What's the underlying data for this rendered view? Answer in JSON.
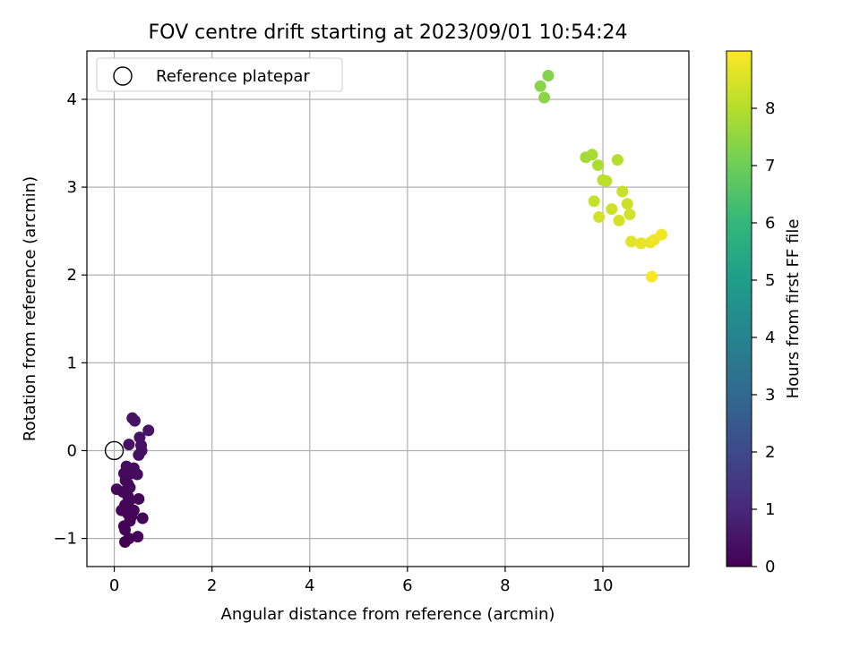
{
  "chart_data": {
    "type": "scatter",
    "title": "FOV centre drift starting at 2023/09/01 10:54:24",
    "xlabel": "Angular distance from reference (arcmin)",
    "ylabel": "Rotation from reference (arcmin)",
    "xlim": [
      -0.56,
      11.76
    ],
    "ylim": [
      -1.32,
      4.55
    ],
    "xticks": [
      0,
      2,
      4,
      6,
      8,
      10
    ],
    "yticks": [
      -1,
      0,
      1,
      2,
      3,
      4
    ],
    "grid": true,
    "legend": {
      "position": "top-left",
      "entries": [
        "Reference platepar"
      ]
    },
    "colorbar": {
      "label": "Hours from first FF file",
      "min": 0,
      "max": 9.0,
      "ticks": [
        0,
        1,
        2,
        3,
        4,
        5,
        6,
        7,
        8
      ],
      "colormap": "viridis"
    },
    "reference_point": {
      "x": 0,
      "y": 0
    },
    "points": [
      {
        "x": 0.37,
        "y": 0.37,
        "c": 0.45
      },
      {
        "x": 0.42,
        "y": 0.34,
        "c": 0.45
      },
      {
        "x": 0.7,
        "y": 0.23,
        "c": 0.5
      },
      {
        "x": 0.52,
        "y": 0.15,
        "c": 0.45
      },
      {
        "x": 0.3,
        "y": 0.07,
        "c": 0.4
      },
      {
        "x": 0.55,
        "y": 0.06,
        "c": 0.4
      },
      {
        "x": 0.56,
        "y": 0.0,
        "c": 0.4
      },
      {
        "x": 0.5,
        "y": -0.05,
        "c": 0.35
      },
      {
        "x": 0.25,
        "y": -0.18,
        "c": 0.3
      },
      {
        "x": 0.4,
        "y": -0.2,
        "c": 0.3
      },
      {
        "x": 0.2,
        "y": -0.26,
        "c": 0.25
      },
      {
        "x": 0.35,
        "y": -0.26,
        "c": 0.25
      },
      {
        "x": 0.47,
        "y": -0.27,
        "c": 0.25
      },
      {
        "x": 0.23,
        "y": -0.34,
        "c": 0.2
      },
      {
        "x": 0.28,
        "y": -0.38,
        "c": 0.2
      },
      {
        "x": 0.32,
        "y": -0.42,
        "c": 0.2
      },
      {
        "x": 0.05,
        "y": -0.44,
        "c": 0.2
      },
      {
        "x": 0.18,
        "y": -0.47,
        "c": 0.15
      },
      {
        "x": 0.28,
        "y": -0.52,
        "c": 0.15
      },
      {
        "x": 0.5,
        "y": -0.55,
        "c": 0.15
      },
      {
        "x": 0.3,
        "y": -0.58,
        "c": 0.15
      },
      {
        "x": 0.22,
        "y": -0.62,
        "c": 0.1
      },
      {
        "x": 0.15,
        "y": -0.68,
        "c": 0.1
      },
      {
        "x": 0.4,
        "y": -0.68,
        "c": 0.1
      },
      {
        "x": 0.28,
        "y": -0.72,
        "c": 0.1
      },
      {
        "x": 0.35,
        "y": -0.75,
        "c": 0.1
      },
      {
        "x": 0.58,
        "y": -0.77,
        "c": 0.1
      },
      {
        "x": 0.32,
        "y": -0.8,
        "c": 0.05
      },
      {
        "x": 0.2,
        "y": -0.86,
        "c": 0.05
      },
      {
        "x": 0.22,
        "y": -0.9,
        "c": 0.05
      },
      {
        "x": 0.48,
        "y": -0.98,
        "c": 0.05
      },
      {
        "x": 0.3,
        "y": -1.0,
        "c": 0.02
      },
      {
        "x": 0.22,
        "y": -1.04,
        "c": 0.0
      },
      {
        "x": 8.88,
        "y": 4.27,
        "c": 7.3
      },
      {
        "x": 8.72,
        "y": 4.15,
        "c": 7.35
      },
      {
        "x": 8.8,
        "y": 4.02,
        "c": 7.4
      },
      {
        "x": 9.65,
        "y": 3.34,
        "c": 7.75
      },
      {
        "x": 9.78,
        "y": 3.37,
        "c": 7.8
      },
      {
        "x": 9.9,
        "y": 3.25,
        "c": 7.85
      },
      {
        "x": 10.3,
        "y": 3.31,
        "c": 8.0
      },
      {
        "x": 10.0,
        "y": 3.08,
        "c": 8.05
      },
      {
        "x": 10.07,
        "y": 3.07,
        "c": 8.1
      },
      {
        "x": 10.4,
        "y": 2.95,
        "c": 8.25
      },
      {
        "x": 9.82,
        "y": 2.84,
        "c": 8.2
      },
      {
        "x": 10.5,
        "y": 2.81,
        "c": 8.3
      },
      {
        "x": 10.18,
        "y": 2.75,
        "c": 8.35
      },
      {
        "x": 10.55,
        "y": 2.69,
        "c": 8.4
      },
      {
        "x": 9.92,
        "y": 2.66,
        "c": 8.4
      },
      {
        "x": 10.33,
        "y": 2.62,
        "c": 8.45
      },
      {
        "x": 10.58,
        "y": 2.38,
        "c": 8.6
      },
      {
        "x": 10.78,
        "y": 2.36,
        "c": 8.7
      },
      {
        "x": 10.97,
        "y": 2.37,
        "c": 8.75
      },
      {
        "x": 11.05,
        "y": 2.4,
        "c": 8.8
      },
      {
        "x": 11.2,
        "y": 2.46,
        "c": 8.85
      },
      {
        "x": 11.0,
        "y": 1.98,
        "c": 8.95
      }
    ]
  }
}
